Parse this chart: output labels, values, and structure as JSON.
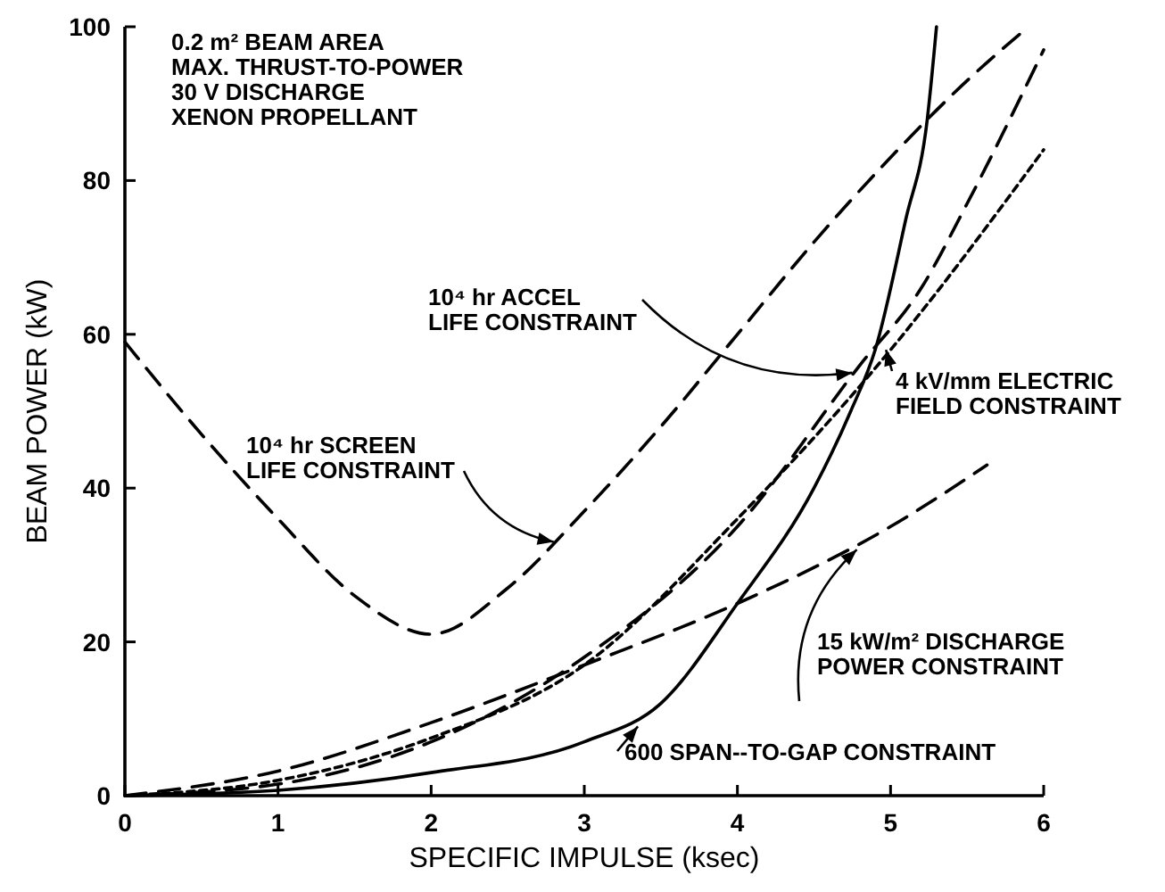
{
  "chart_data": {
    "type": "line",
    "xlabel": "SPECIFIC IMPULSE (ksec)",
    "ylabel": "BEAM POWER (kW)",
    "xlim": [
      0,
      6
    ],
    "xticks": [
      0,
      1,
      2,
      3,
      4,
      5,
      6
    ],
    "ylim": [
      0,
      100
    ],
    "yticks": [
      0,
      20,
      40,
      60,
      80,
      100
    ],
    "grid": false,
    "series": [
      {
        "color": "#000000",
        "line_style": "dashed",
        "x": [
          0,
          0.5,
          1,
          1.5,
          2,
          2.5,
          3,
          3.5,
          4,
          4.5,
          5,
          5.5,
          5.9
        ],
        "values": [
          59,
          47,
          36,
          26,
          21,
          27,
          37,
          48,
          60,
          72,
          83,
          93,
          100
        ]
      },
      {
        "color": "#000000",
        "line_style": "dashed",
        "x": [
          0,
          1,
          2,
          3,
          4,
          4.8,
          5.2,
          5.5,
          6
        ],
        "values": [
          0,
          1.5,
          7,
          18,
          35,
          56,
          66,
          77,
          97
        ]
      },
      {
        "color": "#000000",
        "line_style": "dotted",
        "x": [
          0,
          1,
          2,
          3,
          4,
          4.98,
          6
        ],
        "values": [
          0,
          2,
          7.5,
          17,
          36,
          57.5,
          84
        ]
      },
      {
        "color": "#000000",
        "line_style": "dashed",
        "x": [
          0,
          1,
          2,
          3,
          4,
          5,
          5.63
        ],
        "values": [
          0,
          3.2,
          9.5,
          17,
          25,
          35,
          43
        ]
      },
      {
        "color": "#000000",
        "line_style": "solid",
        "x": [
          0,
          1,
          2,
          3,
          3.5,
          4,
          4.5,
          4.74,
          4.9,
          5.1,
          5.24,
          5.3
        ],
        "values": [
          0,
          0.7,
          3,
          7,
          12,
          25,
          40,
          50,
          58,
          75,
          88,
          100
        ]
      }
    ],
    "annotations": [
      "0.2 m² BEAM AREA\nMAX. THRUST-TO-POWER\n30 V DISCHARGE\nXENON PROPELLANT",
      {
        "text": "10⁴ hr ACCEL\nLIFE CONSTRAINT",
        "x": 4.75,
        "y": 55
      },
      {
        "text": "10⁴ hr SCREEN\nLIFE CONSTRAINT",
        "x": 2.8,
        "y": 33
      },
      {
        "text": "4 kV/mm ELECTRIC\nFIELD CONSTRAINT",
        "x": 4.97,
        "y": 58
      },
      {
        "text": "15 kW/m² DISCHARGE\nPOWER CONSTRAINT",
        "x": 4.78,
        "y": 32
      },
      {
        "text": "600 SPAN--TO-GAP CONSTRAINT",
        "x": 3.35,
        "y": 9
      }
    ]
  }
}
